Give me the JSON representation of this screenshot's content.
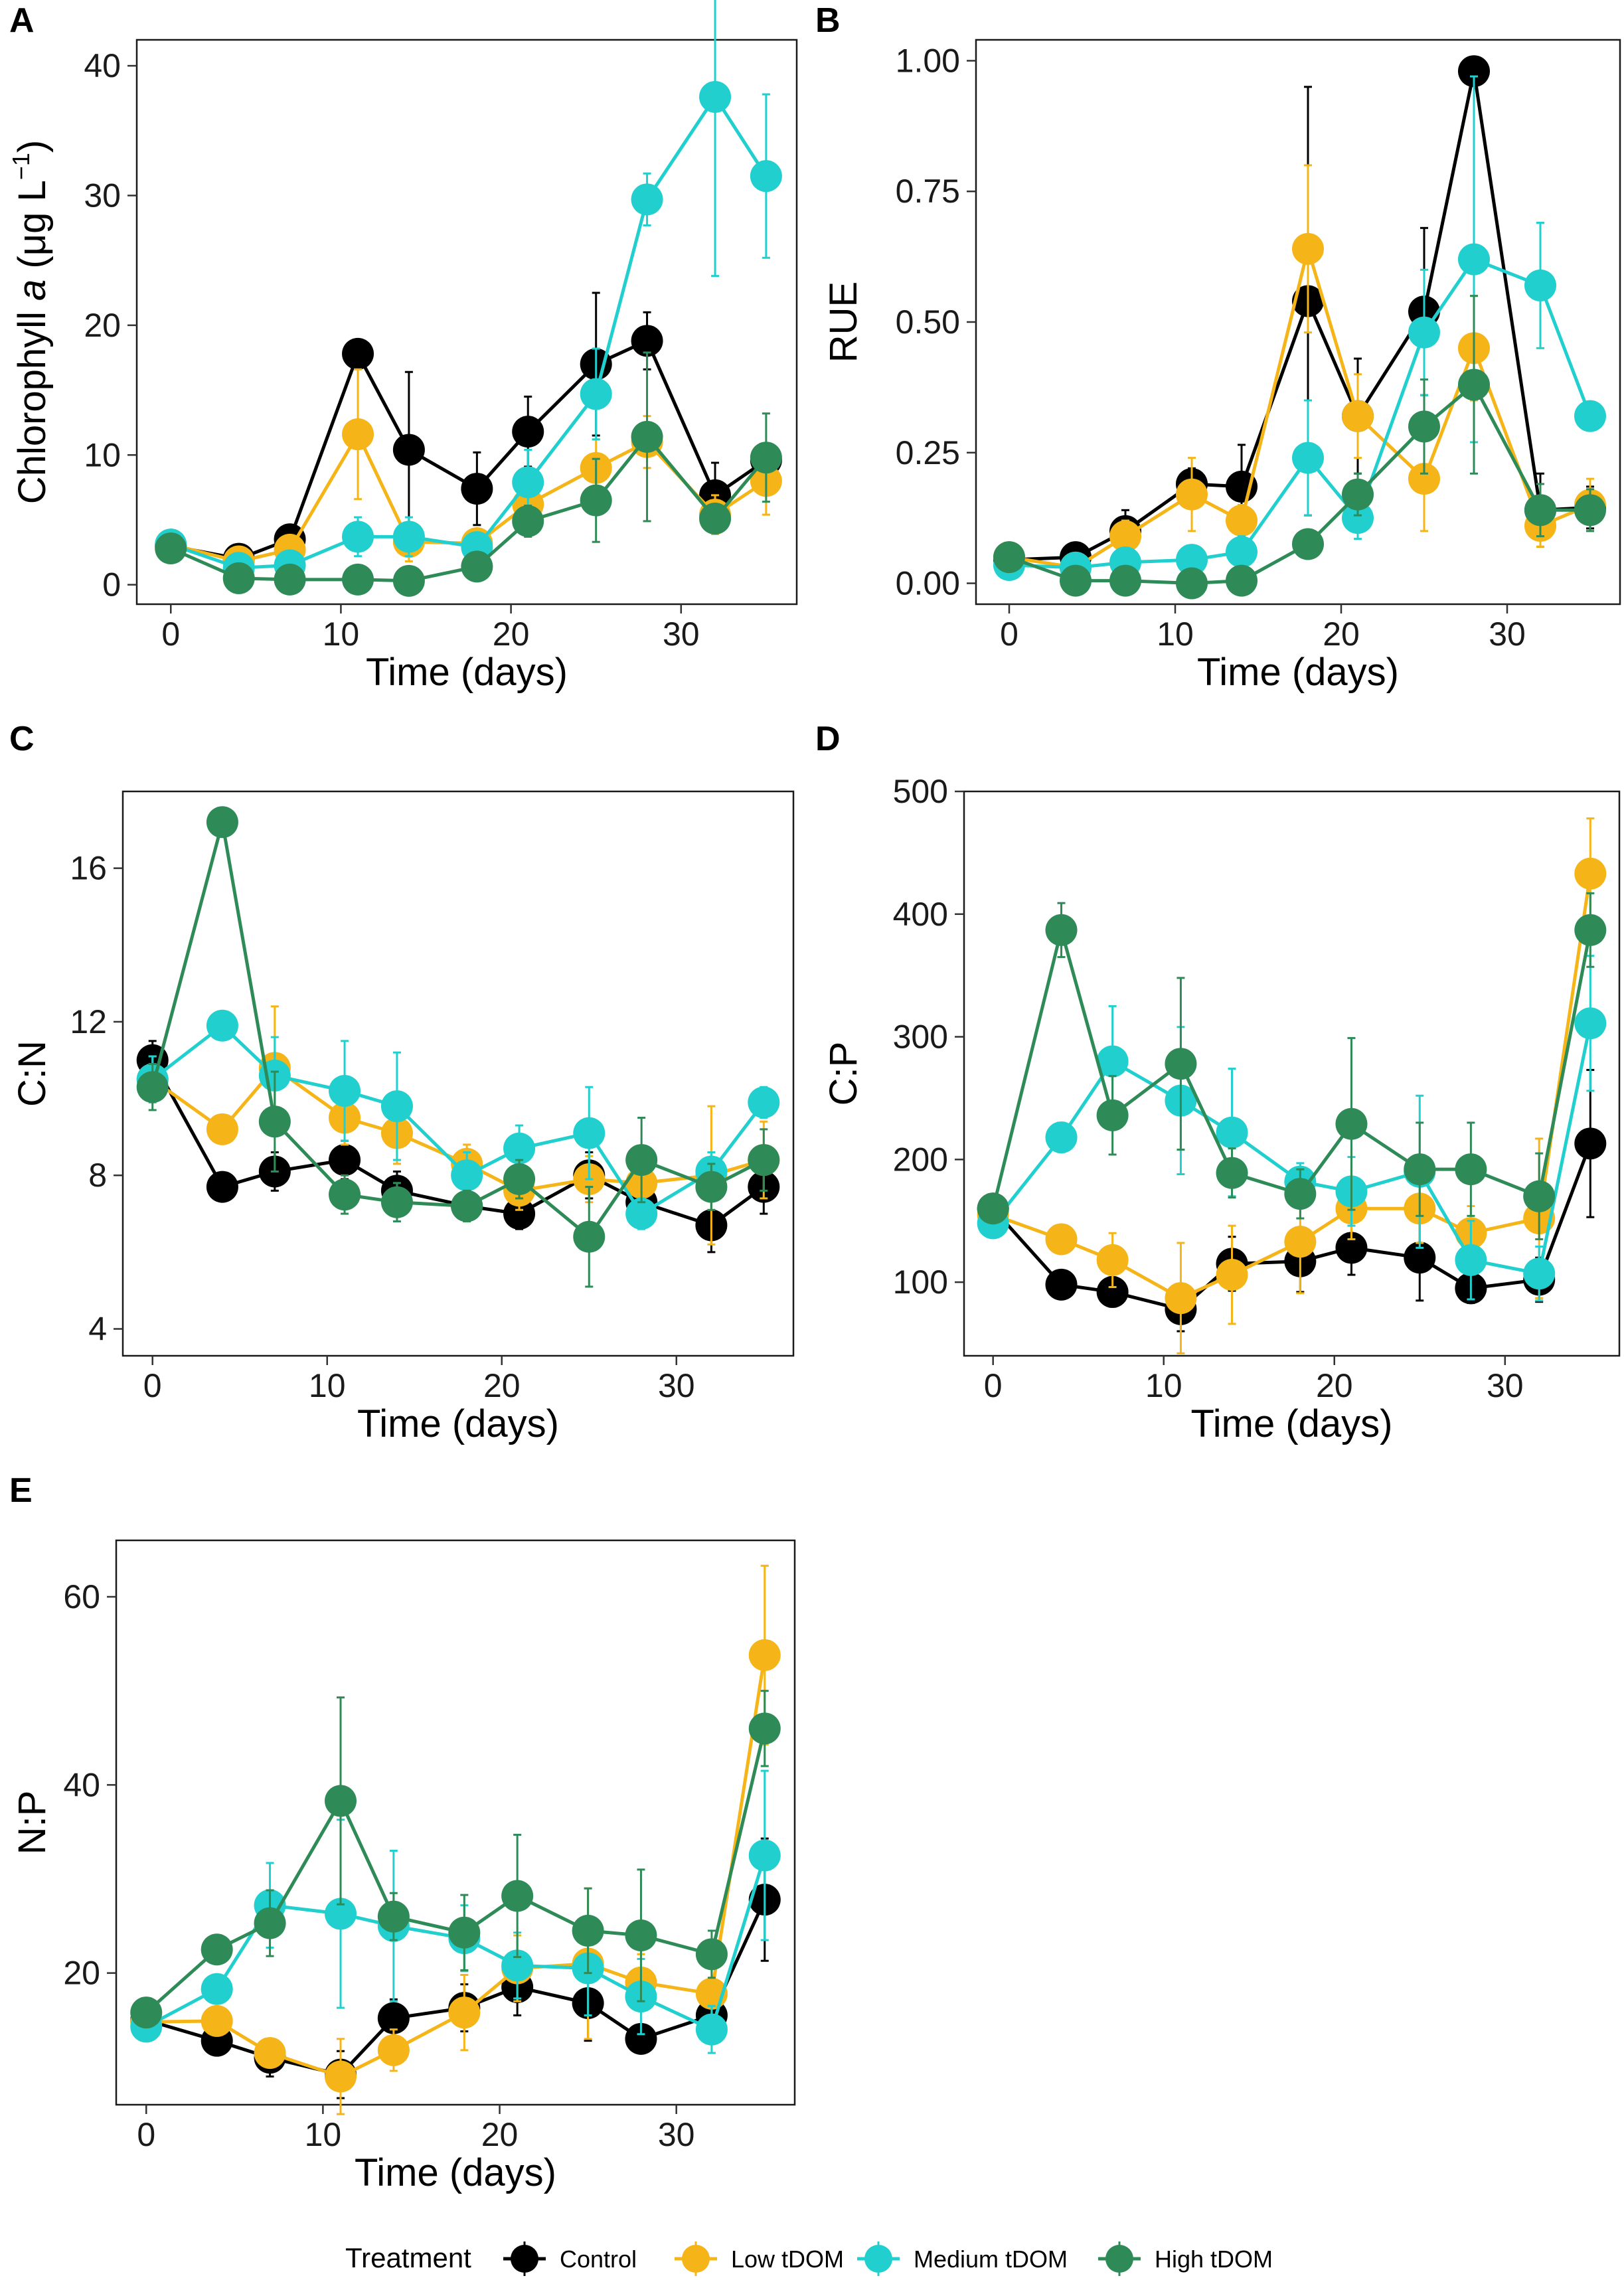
{
  "legend": {
    "title": "Treatment",
    "items": [
      "Control",
      "Low tDOM",
      "Medium tDOM",
      "High tDOM"
    ]
  },
  "colors": {
    "Control": "#000000",
    "Low tDOM": "#f5b417",
    "Medium tDOM": "#22cfcf",
    "High tDOM": "#2e8b57"
  },
  "chart_data": [
    {
      "panel": "A",
      "type": "line",
      "title": "",
      "xlabel": "Time (days)",
      "ylabel_parts": [
        "Chlorophyll",
        "a",
        "(μg L",
        "−1",
        ")"
      ],
      "xlim": [
        -2,
        36.8
      ],
      "ylim": [
        -1.5,
        42
      ],
      "xticks": [
        0,
        10,
        20,
        30
      ],
      "yticks": [
        0,
        10,
        20,
        30,
        40
      ],
      "x": [
        0,
        4,
        7,
        11,
        14,
        18,
        21,
        25,
        28,
        32,
        35
      ],
      "series": [
        {
          "name": "Control",
          "values": [
            3.0,
            2.0,
            3.5,
            17.8,
            10.4,
            7.4,
            11.8,
            17.0,
            18.8,
            6.9,
            9.6
          ],
          "errors": [
            0.4,
            0.6,
            0.8,
            0.8,
            6.0,
            2.8,
            2.7,
            5.5,
            2.2,
            2.5,
            1.2
          ]
        },
        {
          "name": "Low tDOM",
          "values": [
            3.1,
            1.8,
            2.7,
            11.6,
            3.3,
            3.2,
            6.2,
            9.0,
            11.0,
            5.4,
            8.0
          ],
          "errors": [
            0.4,
            0.5,
            0.6,
            5.0,
            1.5,
            1.0,
            2.0,
            2.2,
            2.0,
            1.5,
            2.6
          ]
        },
        {
          "name": "Medium tDOM",
          "values": [
            3.1,
            1.3,
            1.5,
            3.7,
            3.7,
            2.9,
            7.9,
            14.7,
            29.7,
            37.6,
            31.5
          ],
          "errors": [
            0.4,
            0.4,
            0.5,
            1.5,
            1.5,
            0.8,
            2.5,
            3.5,
            2.0,
            13.8,
            6.3
          ]
        },
        {
          "name": "High tDOM",
          "values": [
            2.8,
            0.5,
            0.4,
            0.4,
            0.3,
            1.4,
            4.9,
            6.5,
            11.4,
            5.1,
            9.8
          ],
          "errors": [
            0.3,
            0.2,
            0.2,
            0.2,
            0.2,
            0.5,
            1.2,
            3.2,
            6.5,
            1.0,
            3.4
          ]
        }
      ]
    },
    {
      "panel": "B",
      "type": "line",
      "title": "",
      "xlabel": "Time (days)",
      "ylabel": "RUE",
      "xlim": [
        -2,
        36.8
      ],
      "ylim": [
        -0.04,
        1.04
      ],
      "xticks": [
        0,
        10,
        20,
        30
      ],
      "yticks": [
        0.0,
        0.25,
        0.5,
        0.75,
        1.0
      ],
      "ytick_labels": [
        "0.00",
        "0.25",
        "0.50",
        "0.75",
        "1.00"
      ],
      "x": [
        0,
        4,
        7,
        11,
        14,
        18,
        21,
        25,
        28,
        32,
        35
      ],
      "series": [
        {
          "name": "Control",
          "values": [
            0.045,
            0.05,
            0.1,
            0.19,
            0.185,
            0.54,
            0.32,
            0.52,
            0.98,
            0.14,
            0.145
          ],
          "errors": [
            0.01,
            0.015,
            0.04,
            0.03,
            0.08,
            0.41,
            0.11,
            0.16,
            0.02,
            0.07,
            0.04
          ]
        },
        {
          "name": "Low tDOM",
          "values": [
            0.05,
            0.03,
            0.09,
            0.17,
            0.12,
            0.64,
            0.32,
            0.2,
            0.45,
            0.11,
            0.15
          ],
          "errors": [
            0.01,
            0.01,
            0.03,
            0.07,
            0.03,
            0.16,
            0.08,
            0.1,
            0.1,
            0.04,
            0.05
          ]
        },
        {
          "name": "Medium tDOM",
          "values": [
            0.035,
            0.03,
            0.04,
            0.045,
            0.06,
            0.24,
            0.125,
            0.48,
            0.62,
            0.57,
            0.32
          ],
          "errors": [
            0.01,
            0.01,
            0.02,
            0.02,
            0.03,
            0.11,
            0.04,
            0.12,
            0.35,
            0.12,
            0.02
          ]
        },
        {
          "name": "High tDOM",
          "values": [
            0.05,
            0.005,
            0.005,
            0.0,
            0.005,
            0.075,
            0.17,
            0.3,
            0.38,
            0.14,
            0.14
          ],
          "errors": [
            0.01,
            0.005,
            0.005,
            0.005,
            0.005,
            0.02,
            0.04,
            0.09,
            0.17,
            0.05,
            0.04
          ]
        }
      ]
    },
    {
      "panel": "C",
      "type": "line",
      "title": "",
      "xlabel": "Time (days)",
      "ylabel": "C:N",
      "xlim": [
        -1.7,
        36.7
      ],
      "ylim": [
        3.3,
        18.0
      ],
      "xticks": [
        0,
        10,
        20,
        30
      ],
      "yticks": [
        4,
        8,
        12,
        16
      ],
      "x": [
        0,
        4,
        7,
        11,
        14,
        18,
        21,
        25,
        28,
        32,
        35
      ],
      "series": [
        {
          "name": "Control",
          "values": [
            11.0,
            7.7,
            8.1,
            8.4,
            7.6,
            7.2,
            7.0,
            8.0,
            7.3,
            6.7,
            7.7
          ],
          "errors": [
            0.5,
            0.3,
            0.5,
            0.5,
            0.5,
            0.3,
            0.4,
            0.6,
            0.6,
            0.7,
            0.7
          ]
        },
        {
          "name": "Low tDOM",
          "values": [
            10.5,
            9.2,
            10.8,
            9.5,
            9.1,
            8.3,
            7.6,
            7.9,
            7.8,
            8.0,
            8.4
          ],
          "errors": [
            0.6,
            0.3,
            1.6,
            0.7,
            0.8,
            0.5,
            0.5,
            0.6,
            0.6,
            1.8,
            1.0
          ]
        },
        {
          "name": "Medium tDOM",
          "values": [
            10.5,
            11.9,
            10.6,
            10.2,
            9.8,
            8.0,
            8.7,
            9.1,
            7.0,
            8.1,
            9.9
          ],
          "errors": [
            0.6,
            0.3,
            1.0,
            1.3,
            1.4,
            0.6,
            0.6,
            1.2,
            0.4,
            0.5,
            0.4
          ]
        },
        {
          "name": "High tDOM",
          "values": [
            10.3,
            17.2,
            9.4,
            7.5,
            7.3,
            7.2,
            7.9,
            6.4,
            8.4,
            7.7,
            8.4
          ],
          "errors": [
            0.6,
            0.3,
            1.3,
            0.5,
            0.5,
            0.4,
            0.5,
            1.3,
            1.1,
            0.6,
            0.8
          ]
        }
      ]
    },
    {
      "panel": "D",
      "type": "line",
      "title": "",
      "xlabel": "Time (days)",
      "ylabel": "C:P",
      "xlim": [
        -1.7,
        36.7
      ],
      "ylim": [
        40,
        500
      ],
      "xticks": [
        0,
        10,
        20,
        30
      ],
      "yticks": [
        100,
        200,
        300,
        400,
        500
      ],
      "x": [
        0,
        4,
        7,
        11,
        14,
        18,
        21,
        25,
        28,
        32,
        35
      ],
      "series": [
        {
          "name": "Control",
          "values": [
            160,
            98,
            92,
            78,
            115,
            117,
            128,
            120,
            95,
            102,
            213
          ],
          "errors": [
            8,
            6,
            12,
            18,
            22,
            25,
            22,
            35,
            12,
            18,
            60
          ]
        },
        {
          "name": "Low tDOM",
          "values": [
            155,
            135,
            118,
            87,
            106,
            133,
            160,
            160,
            140,
            152,
            433
          ],
          "errors": [
            8,
            8,
            22,
            45,
            40,
            42,
            25,
            28,
            22,
            65,
            45
          ]
        },
        {
          "name": "Medium tDOM",
          "values": [
            148,
            218,
            280,
            248,
            222,
            182,
            174,
            190,
            118,
            107,
            311
          ],
          "errors": [
            8,
            12,
            45,
            60,
            52,
            15,
            28,
            62,
            32,
            22,
            55
          ]
        },
        {
          "name": "High tDOM",
          "values": [
            160,
            387,
            236,
            278,
            189,
            172,
            229,
            192,
            192,
            170,
            387
          ],
          "errors": [
            8,
            22,
            32,
            70,
            20,
            20,
            70,
            38,
            38,
            35,
            30
          ]
        }
      ]
    },
    {
      "panel": "E",
      "type": "line",
      "title": "",
      "xlabel": "Time (days)",
      "ylabel": "N:P",
      "xlim": [
        -1.7,
        36.7
      ],
      "ylim": [
        6,
        66
      ],
      "xticks": [
        0,
        10,
        20,
        30
      ],
      "yticks": [
        20,
        40,
        60
      ],
      "x": [
        0,
        4,
        7,
        11,
        14,
        18,
        21,
        25,
        28,
        32,
        35
      ],
      "series": [
        {
          "name": "Control",
          "values": [
            15.0,
            12.8,
            11.0,
            9.2,
            15.2,
            16.3,
            18.5,
            16.8,
            13.0,
            15.5,
            27.8
          ],
          "errors": [
            1.0,
            0.8,
            2.0,
            2.5,
            2.0,
            2.5,
            3.0,
            4.0,
            1.5,
            2.5,
            6.5
          ]
        },
        {
          "name": "Low tDOM",
          "values": [
            14.8,
            14.9,
            11.5,
            9.0,
            11.8,
            15.8,
            20.5,
            21.0,
            19.0,
            17.8,
            53.8
          ],
          "errors": [
            1.0,
            1.2,
            1.5,
            4.0,
            2.2,
            4.0,
            3.5,
            8.0,
            3.0,
            4.0,
            9.5
          ]
        },
        {
          "name": "Medium tDOM",
          "values": [
            14.3,
            18.3,
            27.2,
            26.3,
            25.0,
            23.7,
            20.8,
            20.5,
            17.5,
            14.0,
            32.5
          ],
          "errors": [
            1.0,
            1.2,
            4.5,
            10.0,
            8.0,
            3.5,
            3.5,
            5.0,
            4.0,
            2.5,
            9.0
          ]
        },
        {
          "name": "High tDOM",
          "values": [
            15.8,
            22.5,
            25.3,
            38.3,
            26.0,
            24.3,
            28.2,
            24.5,
            24.0,
            22.0,
            46.0
          ],
          "errors": [
            1.0,
            1.2,
            3.5,
            11.0,
            2.5,
            4.0,
            6.5,
            4.5,
            7.0,
            2.5,
            4.0
          ]
        }
      ]
    }
  ]
}
